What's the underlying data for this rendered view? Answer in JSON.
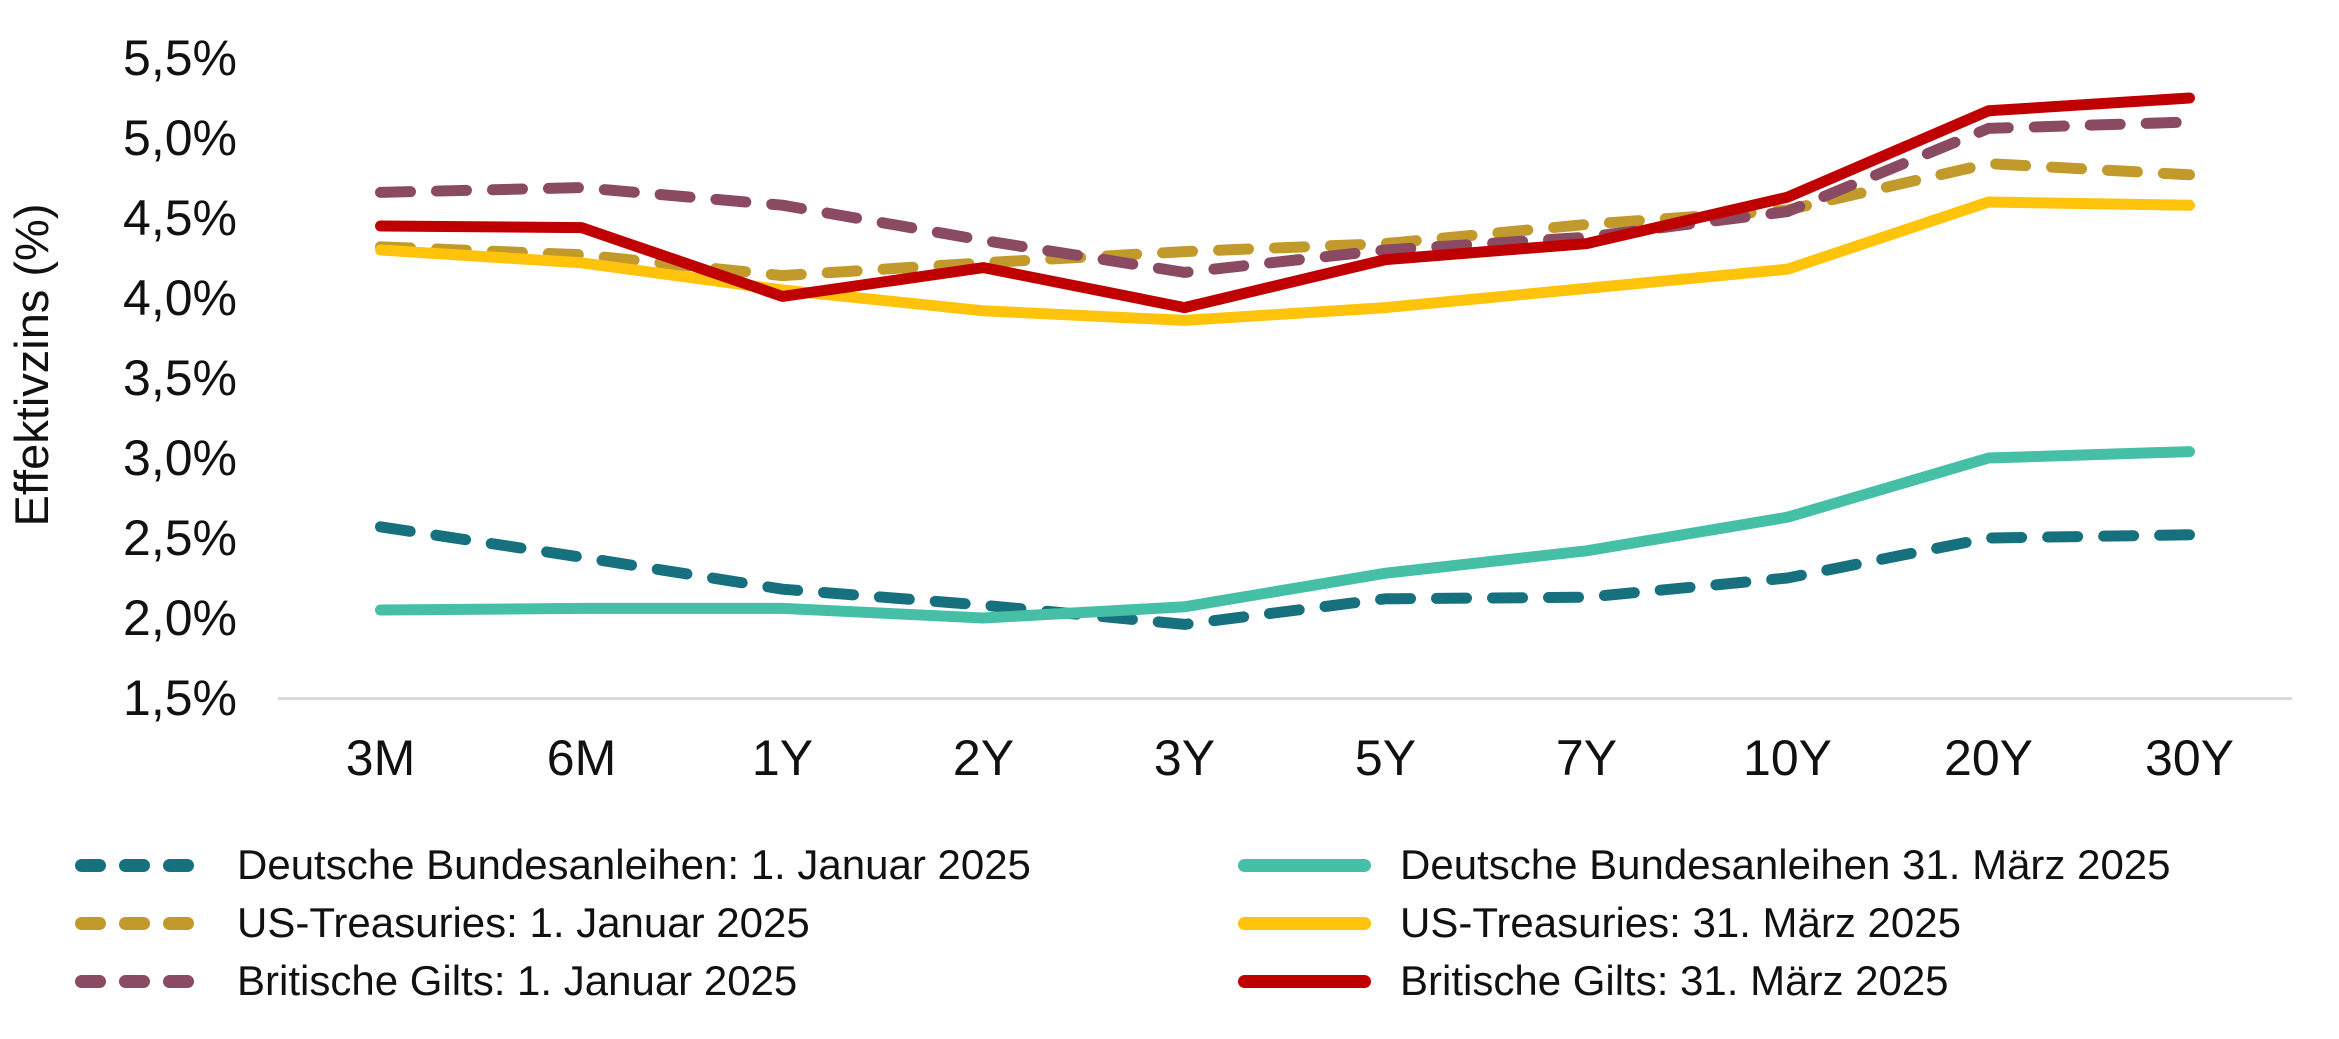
{
  "chart_data": {
    "type": "line",
    "title": "",
    "xlabel": "",
    "ylabel": "Effektivzins (%)",
    "categories": [
      "3M",
      "6M",
      "1Y",
      "2Y",
      "3Y",
      "5Y",
      "7Y",
      "10Y",
      "20Y",
      "30Y"
    ],
    "y_tick_labels": [
      "5,5%",
      "5,0%",
      "4,5%",
      "4,0%",
      "3,5%",
      "3,0%",
      "2,5%",
      "2,0%",
      "1,5%"
    ],
    "y_tick_values": [
      5.5,
      5.0,
      4.5,
      4.0,
      3.5,
      3.0,
      2.5,
      2.0,
      1.5
    ],
    "ylim": [
      1.5,
      5.5
    ],
    "grid": false,
    "legend_position": "bottom-two-columns",
    "axis_line_color": "#d9d9d9",
    "series": [
      {
        "name": "Deutsche Bundesanleihen: 1. Januar 2025",
        "style": "dashed",
        "color": "#16707E",
        "values": [
          2.57,
          2.38,
          2.18,
          2.08,
          1.96,
          2.12,
          2.13,
          2.25,
          2.5,
          2.52
        ]
      },
      {
        "name": "Deutsche Bundesanleihen 31. März 2025",
        "style": "solid",
        "color": "#45BFA6",
        "values": [
          2.05,
          2.06,
          2.06,
          2.0,
          2.07,
          2.28,
          2.42,
          2.63,
          3.0,
          3.04
        ]
      },
      {
        "name": "US-Treasuries: 1. Januar 2025",
        "style": "dashed",
        "color": "#C2992B",
        "values": [
          4.32,
          4.27,
          4.14,
          4.22,
          4.29,
          4.34,
          4.46,
          4.55,
          4.84,
          4.77
        ]
      },
      {
        "name": "US-Treasuries: 31. März 2025",
        "style": "solid",
        "color": "#FFC30B",
        "values": [
          4.3,
          4.22,
          4.05,
          3.92,
          3.86,
          3.94,
          4.06,
          4.18,
          4.6,
          4.58
        ]
      },
      {
        "name": "Britische Gilts: 1. Januar 2025",
        "style": "dashed",
        "color": "#8A4A62",
        "values": [
          4.66,
          4.69,
          4.58,
          4.36,
          4.16,
          4.3,
          4.38,
          4.54,
          5.06,
          5.1
        ]
      },
      {
        "name": "Britische Gilts: 31. März 2025",
        "style": "solid",
        "color": "#C00000",
        "values": [
          4.45,
          4.44,
          4.01,
          4.19,
          3.94,
          4.24,
          4.34,
          4.63,
          5.17,
          5.25
        ]
      }
    ],
    "legend_columns": [
      [
        0,
        2,
        4
      ],
      [
        1,
        3,
        5
      ]
    ]
  }
}
